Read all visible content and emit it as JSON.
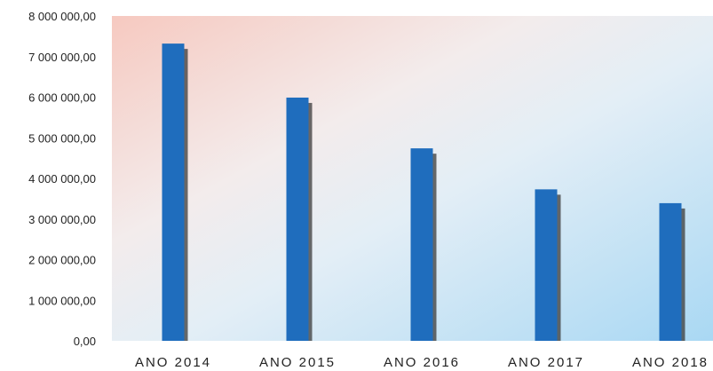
{
  "chart_data": {
    "type": "bar",
    "categories": [
      "ANO 2014",
      "ANO 2015",
      "ANO 2016",
      "ANO 2017",
      "ANO 2018"
    ],
    "series": [
      {
        "values": [
          7320000,
          5990000,
          4740000,
          3730000,
          3390000
        ]
      }
    ],
    "title": "",
    "xlabel": "",
    "ylabel": "",
    "ylim": [
      0,
      8000000
    ],
    "yticks": [
      0,
      1000000,
      2000000,
      3000000,
      4000000,
      5000000,
      6000000,
      7000000,
      8000000
    ],
    "ytick_labels": [
      "0,00",
      "1 000 000,00",
      "2 000 000,00",
      "3 000 000,00",
      "4 000 000,00",
      "5 000 000,00",
      "6 000 000,00",
      "7 000 000,00",
      "8 000 000,00"
    ],
    "grid": false,
    "legend": "none",
    "colors": {
      "bar": "#1f6dbd",
      "bar_shadow": "#3a3a3a",
      "background_warm": "#f6c9c0",
      "background_cool": "#a9d8f3"
    }
  }
}
